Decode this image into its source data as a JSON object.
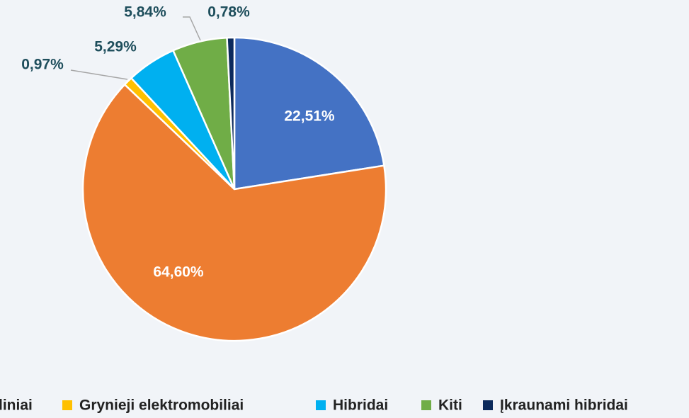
{
  "chart_data": {
    "type": "pie",
    "categories": [
      null,
      "liniai",
      "Grynieji elektromobiliai",
      "Hibridai",
      "Kiti",
      "Įkraunami hibridai"
    ],
    "values": [
      22.51,
      64.6,
      0.97,
      5.29,
      5.84,
      0.78
    ],
    "value_labels": [
      "22,51%",
      "64,60%",
      "0,97%",
      "5,29%",
      "5,84%",
      "0,78%"
    ],
    "colors": [
      "#4472c4",
      "#ed7d31",
      "#ffc000",
      "#00b0f0",
      "#70ad47",
      "#0c2a5c"
    ]
  }
}
